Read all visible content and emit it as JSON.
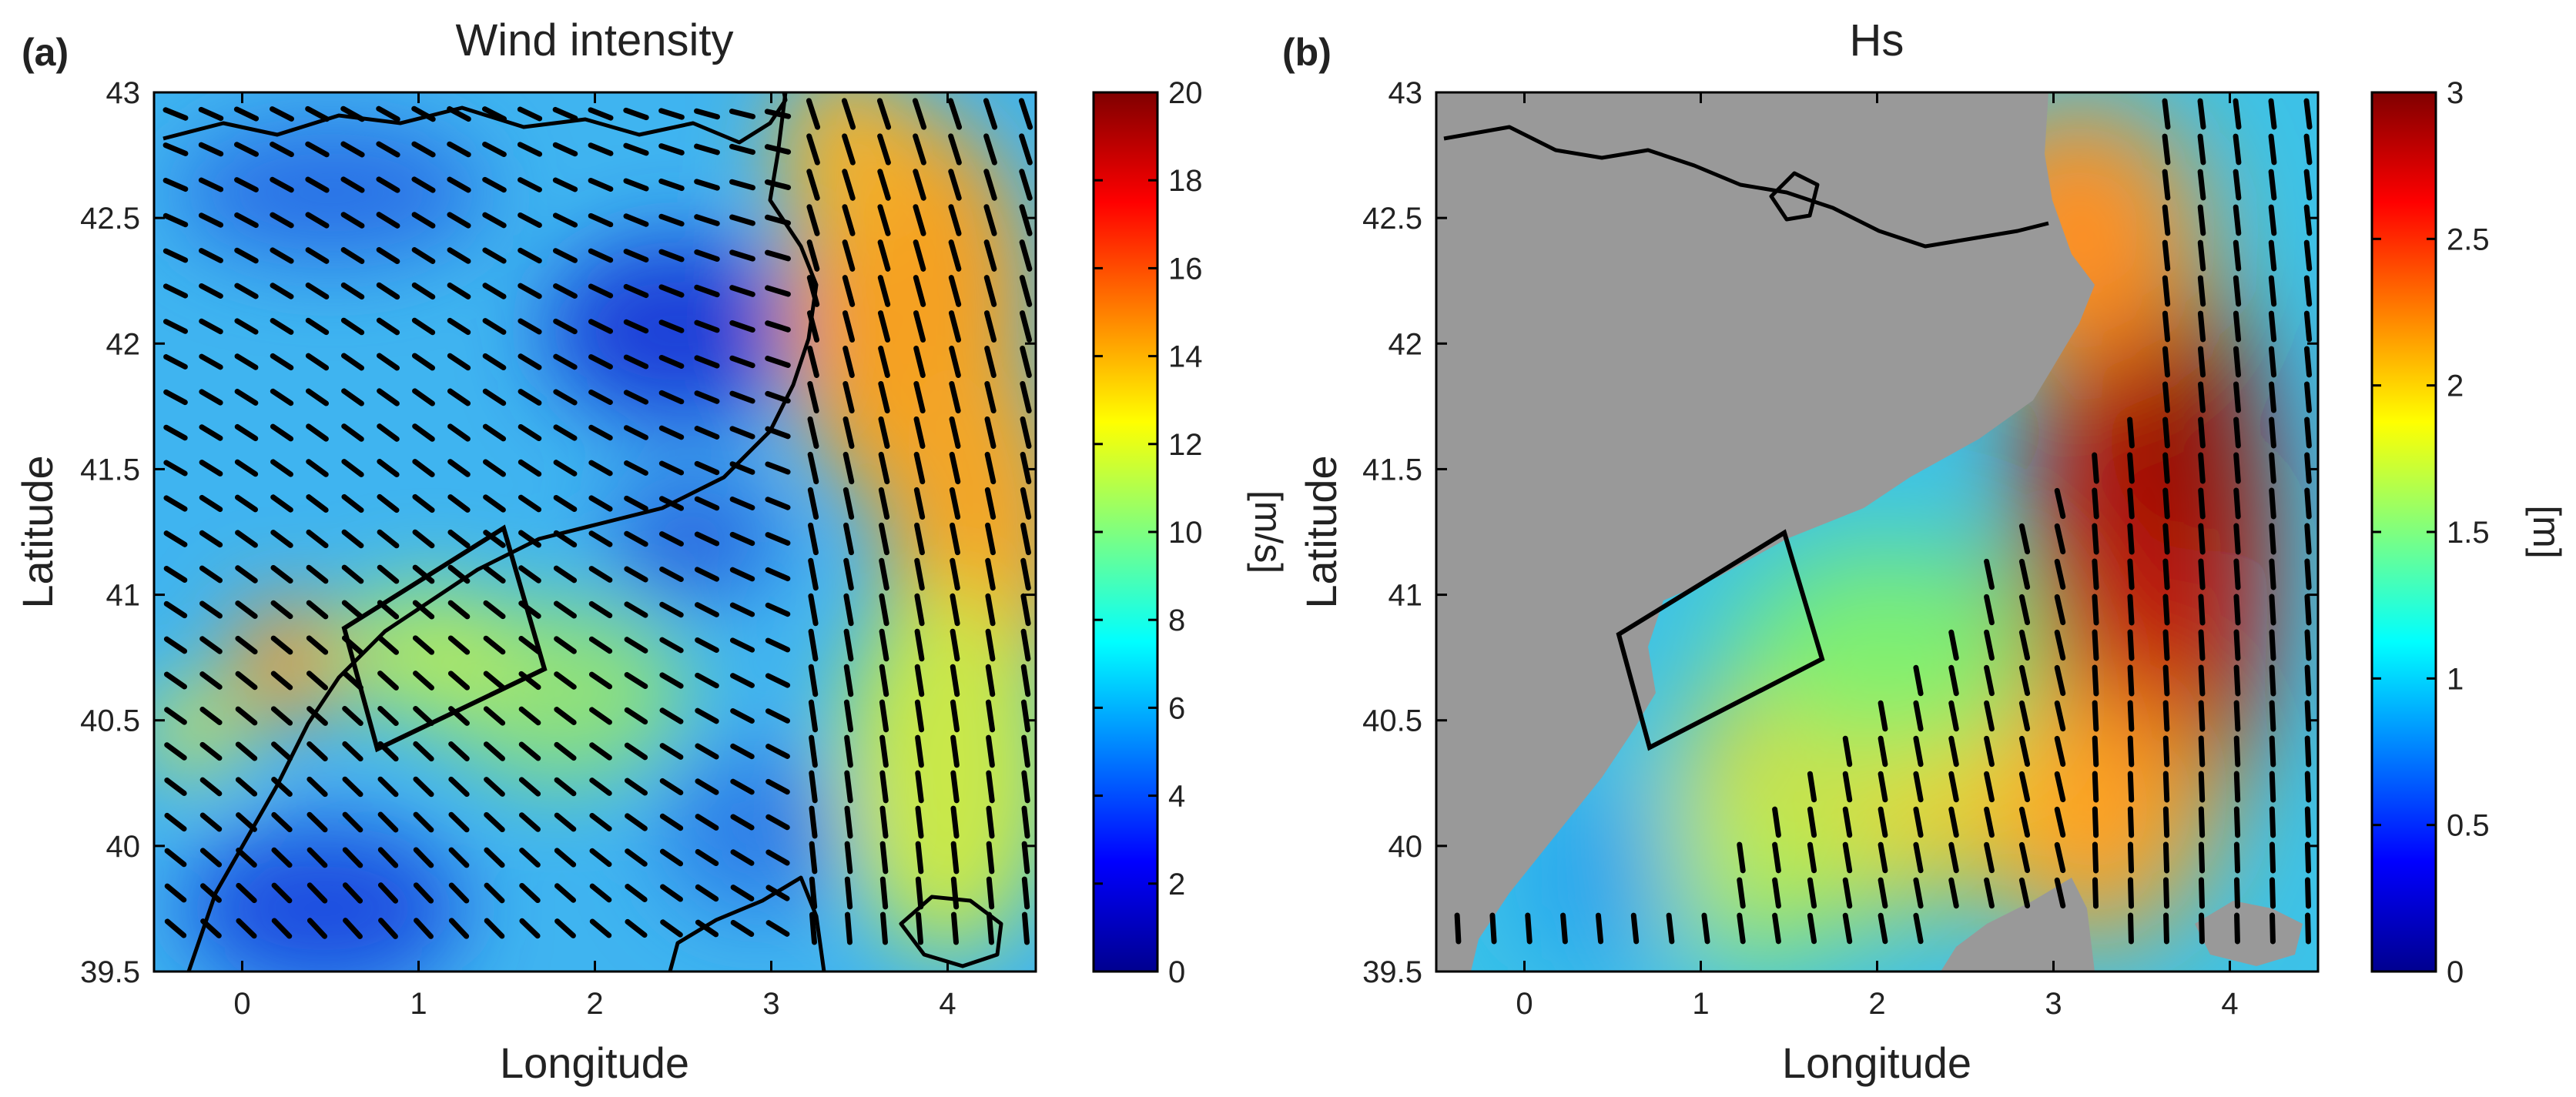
{
  "figure": {
    "panels": [
      {
        "letter": "(a)",
        "title": "Wind intensity"
      },
      {
        "letter": "(b)",
        "title": "Hs"
      }
    ]
  },
  "chart_data": [
    {
      "type": "heatmap",
      "panel": "(a)",
      "title": "Wind intensity",
      "xlabel": "Longitude",
      "ylabel": "Latitude",
      "xlim": [
        -0.5,
        4.5
      ],
      "ylim": [
        39.5,
        43
      ],
      "xticks": [
        0,
        1,
        2,
        3,
        4
      ],
      "yticks": [
        39.5,
        40,
        40.5,
        41,
        41.5,
        42,
        42.5,
        43
      ],
      "colorbar": {
        "label": "[m/s]",
        "min": 0,
        "max": 20,
        "ticks": [
          0,
          2,
          4,
          6,
          8,
          10,
          12,
          14,
          16,
          18,
          20
        ],
        "colormap": "jet"
      },
      "study_box": [
        [
          0.65,
          40.6
        ],
        [
          1.5,
          41.3
        ],
        [
          1.82,
          40.88
        ],
        [
          0.97,
          40.2
        ]
      ],
      "field_notes": "strong northerly wind 14-16 m/s east of 3.2E, weak 2-6 m/s over land, ~12 m/s along coast near 0.3E 40.7N",
      "arrows": "black wind direction arrows on a regular grid"
    },
    {
      "type": "heatmap",
      "panel": "(b)",
      "title": "Hs",
      "xlabel": "Longitude",
      "ylabel": "Latitude",
      "xlim": [
        -0.5,
        4.5
      ],
      "ylim": [
        39.5,
        43
      ],
      "xticks": [
        0,
        1,
        2,
        3,
        4
      ],
      "yticks": [
        39.5,
        40,
        40.5,
        41,
        41.5,
        42,
        42.5,
        43
      ],
      "colorbar": {
        "label": "[m]",
        "min": 0,
        "max": 3,
        "ticks": [
          0,
          0.5,
          1,
          1.5,
          2,
          2.5,
          3
        ],
        "colormap": "jet"
      },
      "land_color": "#999999",
      "study_box": [
        [
          0.6,
          40.87
        ],
        [
          1.45,
          41.28
        ],
        [
          1.72,
          40.72
        ],
        [
          0.82,
          40.38
        ]
      ],
      "field_notes": "significant wave height up to ~2.8 m east of 3.5E near 41.5N, ~1.5-2 m south of 41N, low near coast",
      "arrows": "black wave direction arrows on a regular grid"
    }
  ]
}
